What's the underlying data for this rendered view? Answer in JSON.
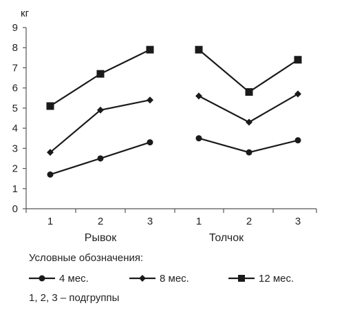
{
  "chart_data": {
    "type": "line",
    "ylabel": "кг",
    "ylim": [
      0,
      9
    ],
    "yticks": [
      0,
      1,
      2,
      3,
      4,
      5,
      6,
      7,
      8,
      9
    ],
    "groups": [
      {
        "label": "Рывок",
        "categories": [
          "1",
          "2",
          "3"
        ],
        "series": [
          {
            "name": "4 мес.",
            "marker": "circle",
            "values": [
              1.7,
              2.5,
              3.3
            ]
          },
          {
            "name": "8 мес.",
            "marker": "diamond",
            "values": [
              2.8,
              4.9,
              5.4
            ]
          },
          {
            "name": "12 мес.",
            "marker": "square",
            "values": [
              5.1,
              6.7,
              7.9
            ]
          }
        ]
      },
      {
        "label": "Толчок",
        "categories": [
          "1",
          "2",
          "3"
        ],
        "series": [
          {
            "name": "4 мес.",
            "marker": "circle",
            "values": [
              3.5,
              2.8,
              3.4
            ]
          },
          {
            "name": "8 мес.",
            "marker": "diamond",
            "values": [
              5.6,
              4.3,
              5.7
            ]
          },
          {
            "name": "12 мес.",
            "marker": "square",
            "values": [
              7.9,
              5.8,
              7.4
            ]
          }
        ]
      }
    ],
    "grid": false,
    "line_color": "#1a1a1a"
  },
  "legend": {
    "title": "Условные обозначения:",
    "items": [
      {
        "label": "4 мес.",
        "marker": "circle"
      },
      {
        "label": "8 мес.",
        "marker": "diamond"
      },
      {
        "label": "12 мес.",
        "marker": "square"
      }
    ],
    "note": "1, 2, 3 – подгруппы"
  }
}
